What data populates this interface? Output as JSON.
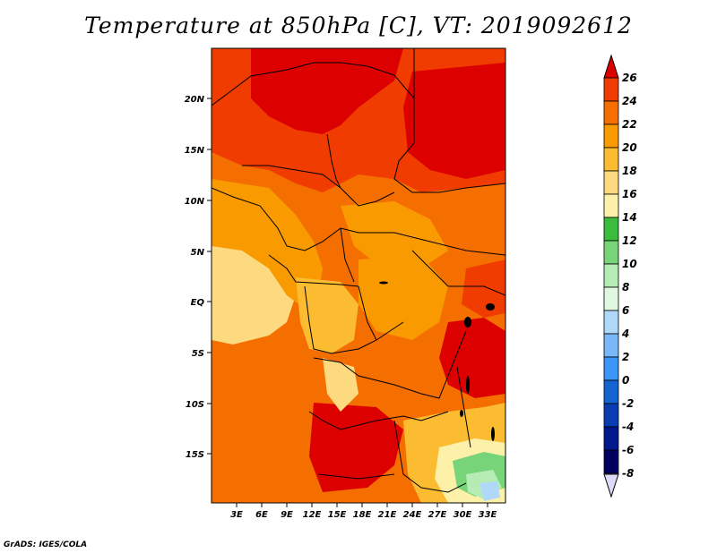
{
  "title": "Temperature at 850hPa [C], VT: 2019092612",
  "footer": "GrADS: IGES/COLA",
  "map": {
    "lat_labels": [
      "20N",
      "15N",
      "10N",
      "5N",
      "EQ",
      "5S",
      "10S",
      "15S"
    ],
    "lon_labels": [
      "3E",
      "6E",
      "9E",
      "12E",
      "15E",
      "18E",
      "21E",
      "24E",
      "27E",
      "30E",
      "33E"
    ]
  },
  "colorbar": {
    "labels": [
      "26",
      "24",
      "22",
      "20",
      "18",
      "16",
      "14",
      "12",
      "10",
      "8",
      "6",
      "4",
      "2",
      "0",
      "-2",
      "-4",
      "-6",
      "-8"
    ],
    "colors": [
      "#dc0000",
      "#f03c00",
      "#f56e00",
      "#f99a00",
      "#fbbc32",
      "#fdd980",
      "#fdf0a8",
      "#3cbc3c",
      "#78d478",
      "#b4ecb4",
      "#e0f8e0",
      "#b0d8f8",
      "#78b8f8",
      "#3c96f5",
      "#1464d2",
      "#0a3cb4",
      "#00188c",
      "#000060",
      "#dcdcf8"
    ]
  }
}
